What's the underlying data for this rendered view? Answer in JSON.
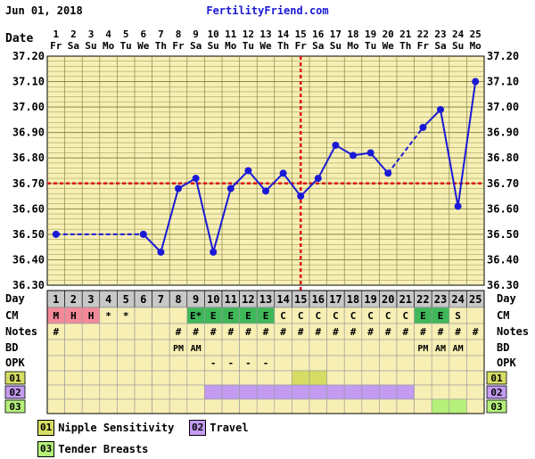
{
  "header": {
    "date": "Jun 01, 2018",
    "brand": "FertilityFriend.com"
  },
  "colors": {
    "background": "#f7efb4",
    "grid": "#7a7a3a",
    "line": "#1a1ad6",
    "coverline": "#e01010",
    "ovulation": "#e01010",
    "cm_menstrual": "#f28a9a",
    "cm_eggwhite": "#3fb85a",
    "cm_sticky": "#ffffff",
    "day_header": "#c8c8c8",
    "legend_01": "#d6dc64",
    "legend_02": "#c39bf0",
    "legend_03": "#b5f07a"
  },
  "chart_data": {
    "type": "line",
    "title": "",
    "xlabel": "Day",
    "ylabel": "",
    "ylim": [
      36.3,
      37.2
    ],
    "y_ticks": [
      "36.30",
      "36.40",
      "36.50",
      "36.60",
      "36.70",
      "36.80",
      "36.90",
      "37.00",
      "37.10",
      "37.20"
    ],
    "date_label": "Date",
    "dates": [
      "1",
      "2",
      "3",
      "4",
      "5",
      "6",
      "7",
      "8",
      "9",
      "10",
      "11",
      "12",
      "13",
      "14",
      "15",
      "16",
      "17",
      "18",
      "19",
      "20",
      "21",
      "22",
      "23",
      "24",
      "25"
    ],
    "weekdays": [
      "Fr",
      "Sa",
      "Su",
      "Mo",
      "Tu",
      "We",
      "Th",
      "Fr",
      "Sa",
      "Su",
      "Mo",
      "Tu",
      "We",
      "Th",
      "Fr",
      "Sa",
      "Su",
      "Mo",
      "Tu",
      "We",
      "Th",
      "Fr",
      "Sa",
      "Su",
      "Mo"
    ],
    "days": [
      1,
      2,
      3,
      4,
      5,
      6,
      7,
      8,
      9,
      10,
      11,
      12,
      13,
      14,
      15,
      16,
      17,
      18,
      19,
      20,
      21,
      22,
      23,
      24,
      25
    ],
    "series": [
      {
        "values": [
          36.5,
          null,
          null,
          null,
          null,
          36.5,
          36.43,
          36.68,
          36.72,
          36.43,
          36.68,
          36.75,
          36.67,
          36.74,
          36.65,
          36.72,
          36.85,
          36.81,
          36.82,
          36.74,
          null,
          36.92,
          36.99,
          36.61,
          37.1
        ]
      }
    ],
    "coverline": 36.7,
    "ovulation_day": 15,
    "grid": true
  },
  "rows": {
    "day_label": "Day",
    "cm": {
      "label": "CM",
      "values": [
        "M",
        "H",
        "H",
        "*",
        "*",
        "",
        "",
        "",
        "E*",
        "E",
        "E",
        "E",
        "E",
        "C",
        "C",
        "C",
        "C",
        "C",
        "C",
        "C",
        "C",
        "E",
        "E",
        "S",
        ""
      ],
      "types": [
        "menstrual",
        "menstrual",
        "menstrual",
        "none",
        "none",
        "none",
        "none",
        "none",
        "eggwhite",
        "eggwhite",
        "eggwhite",
        "eggwhite",
        "eggwhite",
        "none",
        "none",
        "none",
        "none",
        "none",
        "none",
        "none",
        "none",
        "eggwhite",
        "eggwhite",
        "none",
        "none"
      ]
    },
    "notes": {
      "label": "Notes",
      "values": [
        "#",
        "",
        "",
        "",
        "",
        "",
        "",
        "#",
        "#",
        "#",
        "#",
        "#",
        "#",
        "#",
        "#",
        "#",
        "#",
        "#",
        "#",
        "#",
        "#",
        "#",
        "#",
        "#",
        "#"
      ]
    },
    "bd": {
      "label": "BD",
      "values": [
        "",
        "",
        "",
        "",
        "",
        "",
        "",
        "PM",
        "AM",
        "",
        "",
        "",
        "",
        "",
        "",
        "",
        "",
        "",
        "",
        "",
        "",
        "PM",
        "AM",
        "AM",
        ""
      ]
    },
    "opk": {
      "label": "OPK",
      "values": [
        "",
        "",
        "",
        "",
        "",
        "",
        "",
        "",
        "",
        "-",
        "-",
        "-",
        "-",
        "",
        "",
        "",
        "",
        "",
        "",
        "",
        "",
        "",
        "",
        "",
        ""
      ]
    },
    "symptom_rows": [
      {
        "label": "01",
        "days": [
          15,
          16
        ]
      },
      {
        "label": "02",
        "days": [
          10,
          11,
          12,
          13,
          14,
          15,
          16,
          17,
          18,
          19,
          20,
          21
        ]
      },
      {
        "label": "03",
        "days": [
          23,
          24
        ]
      }
    ]
  },
  "legend": [
    {
      "code": "01",
      "text": "Nipple Sensitivity"
    },
    {
      "code": "02",
      "text": "Travel"
    },
    {
      "code": "03",
      "text": "Tender Breasts"
    }
  ]
}
